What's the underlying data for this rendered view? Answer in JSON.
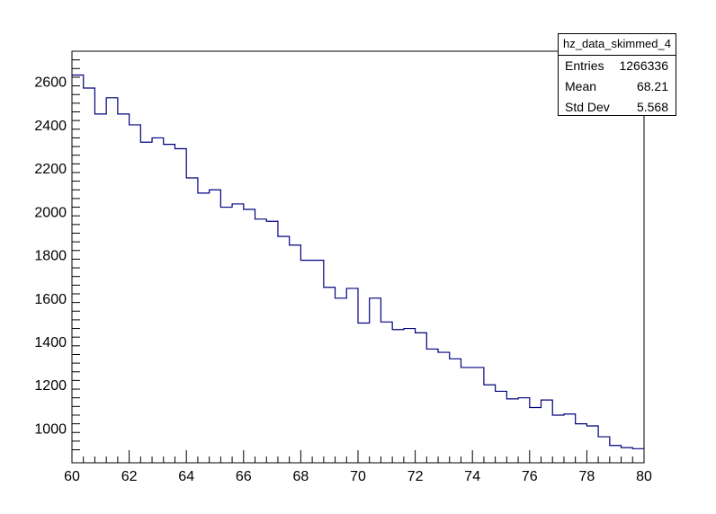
{
  "stats": {
    "title": "hz_data_skimmed_4",
    "rows": [
      {
        "label": "Entries",
        "value": "1266336"
      },
      {
        "label": "Mean",
        "value": "68.21"
      },
      {
        "label": "Std Dev",
        "value": "5.568"
      }
    ]
  },
  "colors": {
    "line": "#000080",
    "axis": "#000000"
  },
  "chart_data": {
    "type": "histogram",
    "title": "",
    "xlabel": "",
    "ylabel": "",
    "xlim": [
      60,
      80
    ],
    "ylim": [
      840,
      2740
    ],
    "bin_width": 0.4,
    "x_ticks": [
      60,
      62,
      64,
      66,
      68,
      70,
      72,
      74,
      76,
      78,
      80
    ],
    "y_ticks": [
      1000,
      1200,
      1400,
      1600,
      1800,
      2000,
      2200,
      2400,
      2600
    ],
    "bin_low_edges": [
      60.0,
      60.4,
      60.8,
      61.2,
      61.6,
      62.0,
      62.4,
      62.8,
      63.2,
      63.6,
      64.0,
      64.4,
      64.8,
      65.2,
      65.6,
      66.0,
      66.4,
      66.8,
      67.2,
      67.6,
      68.0,
      68.4,
      68.8,
      69.2,
      69.6,
      70.0,
      70.4,
      70.8,
      71.2,
      71.6,
      72.0,
      72.4,
      72.8,
      73.2,
      73.6,
      74.0,
      74.4,
      74.8,
      75.2,
      75.6,
      76.0,
      76.4,
      76.8,
      77.2,
      77.6,
      78.0,
      78.4,
      78.8,
      79.2,
      79.6
    ],
    "values": [
      2630,
      2570,
      2450,
      2525,
      2450,
      2400,
      2320,
      2340,
      2310,
      2290,
      2155,
      2085,
      2100,
      2020,
      2035,
      2010,
      1965,
      1955,
      1885,
      1845,
      1775,
      1775,
      1650,
      1600,
      1645,
      1485,
      1600,
      1490,
      1455,
      1460,
      1440,
      1365,
      1350,
      1320,
      1280,
      1280,
      1200,
      1170,
      1135,
      1140,
      1095,
      1130,
      1060,
      1065,
      1020,
      1010,
      960,
      920,
      910,
      905
    ],
    "grid": false,
    "legend": "top-right"
  }
}
